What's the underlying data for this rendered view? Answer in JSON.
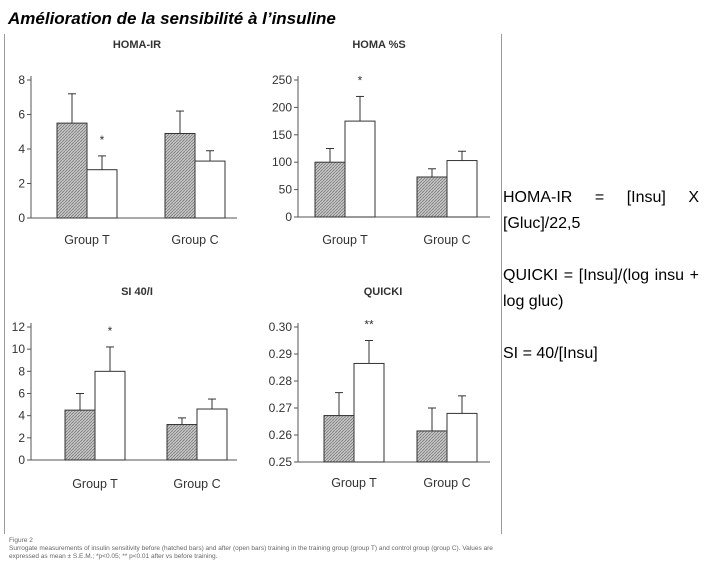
{
  "slide": {
    "title": "Amélioration de la sensibilité à l’insuline"
  },
  "formulas": [
    "HOMA-IR = [Insu] X [Gluc]/22,5",
    "QUICKI = [Insu]/(log insu + log gluc)",
    "SI = 40/[Insu]"
  ],
  "figure": {
    "label": "Figure 2",
    "caption": "Surrogate measurements of insulin sensitivity before (hatched bars) and after (open bars) training in the training group (group T) and control group (group C). Values are expressed as mean ± S.E.M.; *p<0.05; ** p<0.01 after vs before training."
  },
  "colors": {
    "before_fill": "hatched gray",
    "after_fill": "#ffffff",
    "bar_stroke": "#333333"
  },
  "chart_data": [
    {
      "type": "bar",
      "title": "HOMA-IR",
      "categories": [
        "Group T",
        "Group C"
      ],
      "series": [
        {
          "values": [
            5.5,
            4.9
          ],
          "errors": [
            1.7,
            1.3
          ],
          "fill": "hatched"
        },
        {
          "values": [
            2.8,
            3.3
          ],
          "errors": [
            0.8,
            0.6
          ],
          "fill": "open"
        }
      ],
      "significance": [
        {
          "category": 0,
          "series": 1,
          "label": "*"
        }
      ],
      "ylim": [
        0,
        8
      ],
      "yticks": [
        0,
        2,
        4,
        6,
        8
      ],
      "ytick_labels": [
        "0",
        "2",
        "4",
        "6",
        "8"
      ],
      "xlabel": "",
      "ylabel": "",
      "grid": false
    },
    {
      "type": "bar",
      "title": "HOMA %S",
      "categories": [
        "Group T",
        "Group C"
      ],
      "series": [
        {
          "values": [
            100,
            73
          ],
          "errors": [
            25,
            15
          ],
          "fill": "hatched"
        },
        {
          "values": [
            175,
            103
          ],
          "errors": [
            45,
            17
          ],
          "fill": "open"
        }
      ],
      "significance": [
        {
          "category": 0,
          "series": 1,
          "label": "*"
        }
      ],
      "ylim": [
        0,
        250
      ],
      "yticks": [
        0,
        50,
        100,
        150,
        200,
        250
      ],
      "ytick_labels": [
        "0",
        "50",
        "100",
        "150",
        "200",
        "250"
      ],
      "xlabel": "",
      "ylabel": "",
      "grid": false
    },
    {
      "type": "bar",
      "title": "SI 40/I",
      "categories": [
        "Group T",
        "Group C"
      ],
      "series": [
        {
          "values": [
            4.5,
            3.2
          ],
          "errors": [
            1.5,
            0.6
          ],
          "fill": "hatched"
        },
        {
          "values": [
            8.0,
            4.6
          ],
          "errors": [
            2.2,
            0.9
          ],
          "fill": "open"
        }
      ],
      "significance": [
        {
          "category": 0,
          "series": 1,
          "label": "*"
        }
      ],
      "ylim": [
        0,
        12
      ],
      "yticks": [
        0,
        2,
        4,
        6,
        8,
        10,
        12
      ],
      "ytick_labels": [
        "0",
        "2",
        "4",
        "6",
        "8",
        "10",
        "12"
      ],
      "xlabel": "",
      "ylabel": "",
      "grid": false
    },
    {
      "type": "bar",
      "title": "QUICKI",
      "categories": [
        "Group T",
        "Group C"
      ],
      "series": [
        {
          "values": [
            0.2672,
            0.2615
          ],
          "errors": [
            0.0085,
            0.0085
          ],
          "fill": "hatched"
        },
        {
          "values": [
            0.2865,
            0.268
          ],
          "errors": [
            0.0085,
            0.0065
          ],
          "fill": "open"
        }
      ],
      "significance": [
        {
          "category": 0,
          "series": 1,
          "label": "**"
        }
      ],
      "ylim": [
        0.25,
        0.3
      ],
      "yticks": [
        0.25,
        0.26,
        0.27,
        0.28,
        0.29,
        0.3
      ],
      "ytick_labels": [
        "0.25",
        "0.26",
        "0.27",
        "0.28",
        "0.29",
        "0.30"
      ],
      "xlabel": "",
      "ylabel": "",
      "grid": false
    }
  ]
}
